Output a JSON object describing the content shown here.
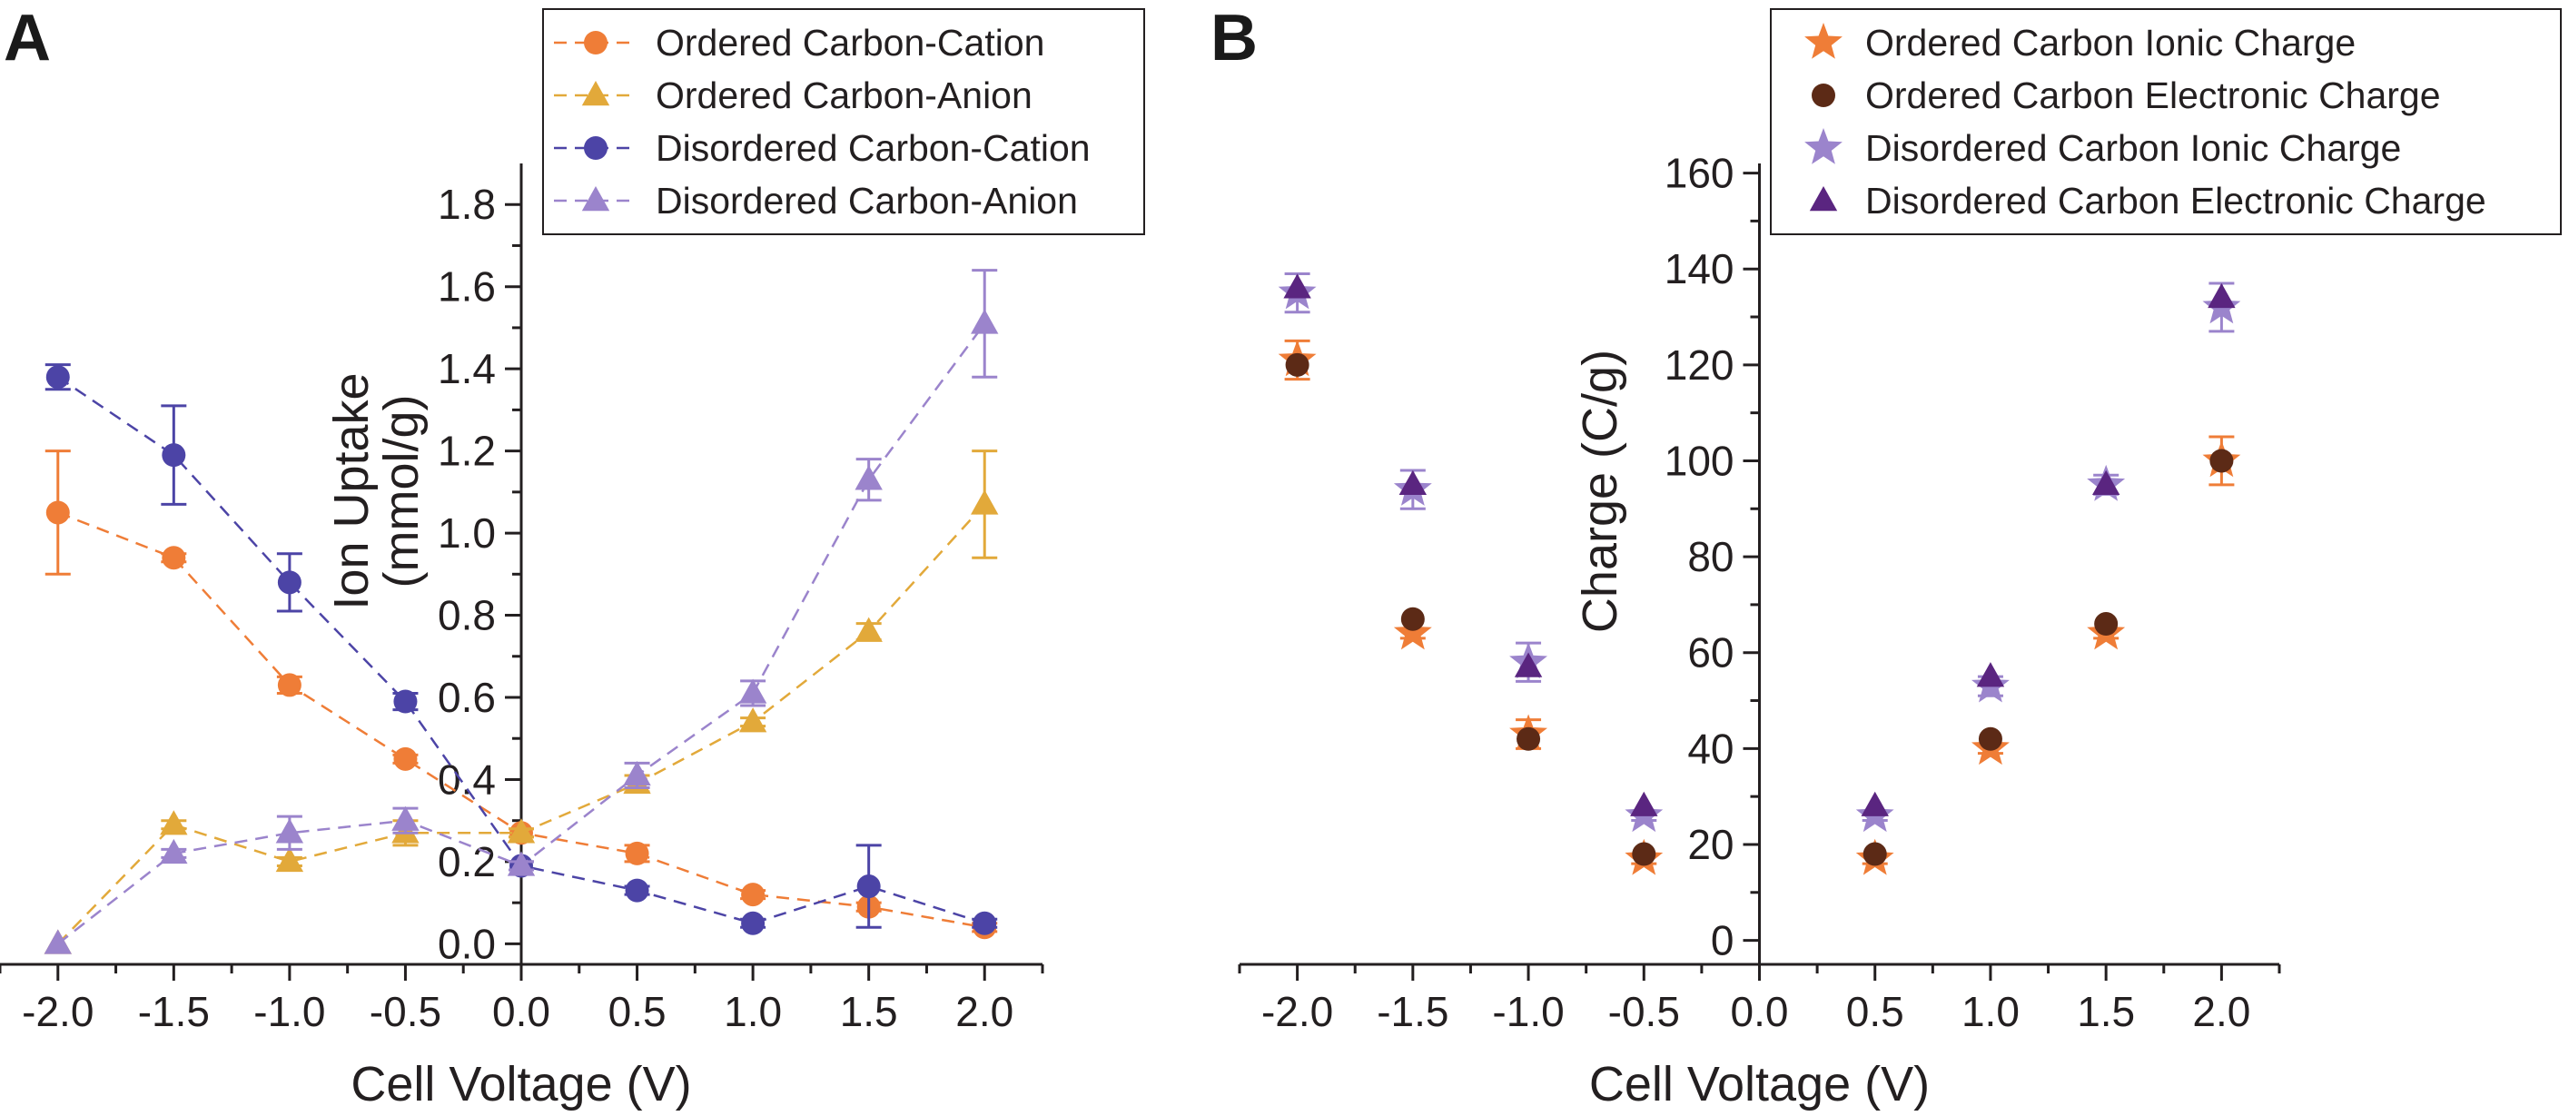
{
  "figure": {
    "panel_a_letter": "A",
    "panel_b_letter": "B"
  },
  "chart_data": [
    {
      "id": "A",
      "type": "line",
      "xlabel": "Cell Voltage (V)",
      "ylabel_line1": "Ion Uptake",
      "ylabel_line2": "(mmol/g)",
      "xlim": [
        -2.25,
        2.25
      ],
      "ylim": [
        -0.05,
        1.9
      ],
      "x_ticks": [
        -2.0,
        -1.5,
        -1.0,
        -0.5,
        0.0,
        0.5,
        1.0,
        1.5,
        2.0
      ],
      "x_tick_labels": [
        "-2.0",
        "-1.5",
        "-1.0",
        "-0.5",
        "0.0",
        "0.5",
        "1.0",
        "1.5",
        "2.0"
      ],
      "y_ticks": [
        0.0,
        0.2,
        0.4,
        0.6,
        0.8,
        1.0,
        1.2,
        1.4,
        1.6,
        1.8
      ],
      "y_tick_labels": [
        "0.0",
        "0.2",
        "0.4",
        "0.6",
        "0.8",
        "1.0",
        "1.2",
        "1.4",
        "1.6",
        "1.8"
      ],
      "legend_placement": "top-right",
      "grid": false,
      "series": [
        {
          "name": "Ordered Carbon-Cation",
          "color": "#ef7d37",
          "marker": "circle",
          "line": "dashed",
          "x": [
            -2.0,
            -1.5,
            -1.0,
            -0.5,
            0.0,
            0.5,
            1.0,
            1.5,
            2.0
          ],
          "y": [
            1.05,
            0.94,
            0.63,
            0.45,
            0.27,
            0.22,
            0.12,
            0.09,
            0.04
          ],
          "err": [
            0.15,
            0.01,
            0.02,
            0.01,
            0.01,
            0.02,
            0.01,
            0.01,
            0.01
          ]
        },
        {
          "name": "Ordered Carbon-Anion",
          "color": "#e2a93a",
          "marker": "triangle",
          "line": "dashed",
          "x": [
            -2.0,
            -1.5,
            -1.0,
            -0.5,
            0.0,
            0.5,
            1.0,
            1.5,
            2.0
          ],
          "y": [
            0.0,
            0.29,
            0.2,
            0.27,
            0.27,
            0.39,
            0.54,
            0.76,
            1.07
          ],
          "err": [
            0.0,
            0.01,
            0.01,
            0.03,
            0.01,
            0.02,
            0.01,
            0.02,
            0.13
          ]
        },
        {
          "name": "Disordered Carbon-Cation",
          "color": "#4c44a6",
          "marker": "circle",
          "line": "dashed",
          "x": [
            -2.0,
            -1.5,
            -1.0,
            -0.5,
            0.0,
            0.5,
            1.0,
            1.5,
            2.0
          ],
          "y": [
            1.38,
            1.19,
            0.88,
            0.59,
            0.19,
            0.13,
            0.05,
            0.14,
            0.05
          ],
          "err": [
            0.03,
            0.12,
            0.07,
            0.02,
            0.01,
            0.01,
            0.01,
            0.1,
            0.01
          ]
        },
        {
          "name": "Disordered Carbon-Anion",
          "color": "#9b84cc",
          "marker": "triangle",
          "line": "dashed",
          "x": [
            -2.0,
            -1.5,
            -1.0,
            -0.5,
            0.0,
            0.5,
            1.0,
            1.5,
            2.0
          ],
          "y": [
            0.0,
            0.22,
            0.27,
            0.3,
            0.19,
            0.41,
            0.61,
            1.13,
            1.51
          ],
          "err": [
            0.0,
            0.01,
            0.04,
            0.03,
            0.01,
            0.03,
            0.03,
            0.05,
            0.13
          ]
        }
      ]
    },
    {
      "id": "B",
      "type": "scatter",
      "xlabel": "Cell Voltage (V)",
      "ylabel": "Charge (C/g)",
      "xlim": [
        -2.25,
        2.25
      ],
      "ylim": [
        -5,
        162
      ],
      "x_ticks": [
        -2.0,
        -1.5,
        -1.0,
        -0.5,
        0.0,
        0.5,
        1.0,
        1.5,
        2.0
      ],
      "x_tick_labels": [
        "-2.0",
        "-1.5",
        "-1.0",
        "-0.5",
        "0.0",
        "0.5",
        "1.0",
        "1.5",
        "2.0"
      ],
      "y_ticks": [
        0,
        20,
        40,
        60,
        80,
        100,
        120,
        140,
        160
      ],
      "y_tick_labels": [
        "0",
        "20",
        "40",
        "60",
        "80",
        "100",
        "120",
        "140",
        "160"
      ],
      "legend_placement": "top-right",
      "grid": false,
      "series": [
        {
          "name": "Ordered Carbon Ionic Charge",
          "color": "#ef7d37",
          "marker": "star",
          "x": [
            -2.0,
            -1.5,
            -1.0,
            -0.5,
            0.5,
            1.0,
            1.5,
            2.0
          ],
          "y": [
            121,
            64,
            43,
            17,
            17,
            40,
            64,
            100
          ],
          "err": [
            4,
            1,
            3,
            1,
            1,
            1,
            1,
            5
          ]
        },
        {
          "name": "Ordered Carbon Electronic Charge",
          "color": "#5c2a16",
          "marker": "circle",
          "x": [
            -2.0,
            -1.5,
            -1.0,
            -0.5,
            0.5,
            1.0,
            1.5,
            2.0
          ],
          "y": [
            120,
            67,
            42,
            18,
            18,
            42,
            66,
            100
          ],
          "err": [
            0,
            0,
            0,
            0,
            0,
            0,
            0,
            0
          ]
        },
        {
          "name": "Disordered Carbon Ionic Charge",
          "color": "#9b84cc",
          "marker": "star",
          "x": [
            -2.0,
            -1.5,
            -1.0,
            -0.5,
            0.5,
            1.0,
            1.5,
            2.0
          ],
          "y": [
            135,
            94,
            58,
            26,
            26,
            53,
            95,
            132
          ],
          "err": [
            4,
            4,
            4,
            1,
            1,
            2,
            2,
            5
          ]
        },
        {
          "name": "Disordered Carbon Electronic Charge",
          "color": "#5a2580",
          "marker": "triangle",
          "x": [
            -2.0,
            -1.5,
            -1.0,
            -0.5,
            0.5,
            1.0,
            1.5,
            2.0
          ],
          "y": [
            136,
            95,
            57,
            28,
            28,
            55,
            95,
            134
          ],
          "err": [
            0,
            0,
            0,
            0,
            0,
            0,
            0,
            0
          ]
        }
      ]
    }
  ]
}
